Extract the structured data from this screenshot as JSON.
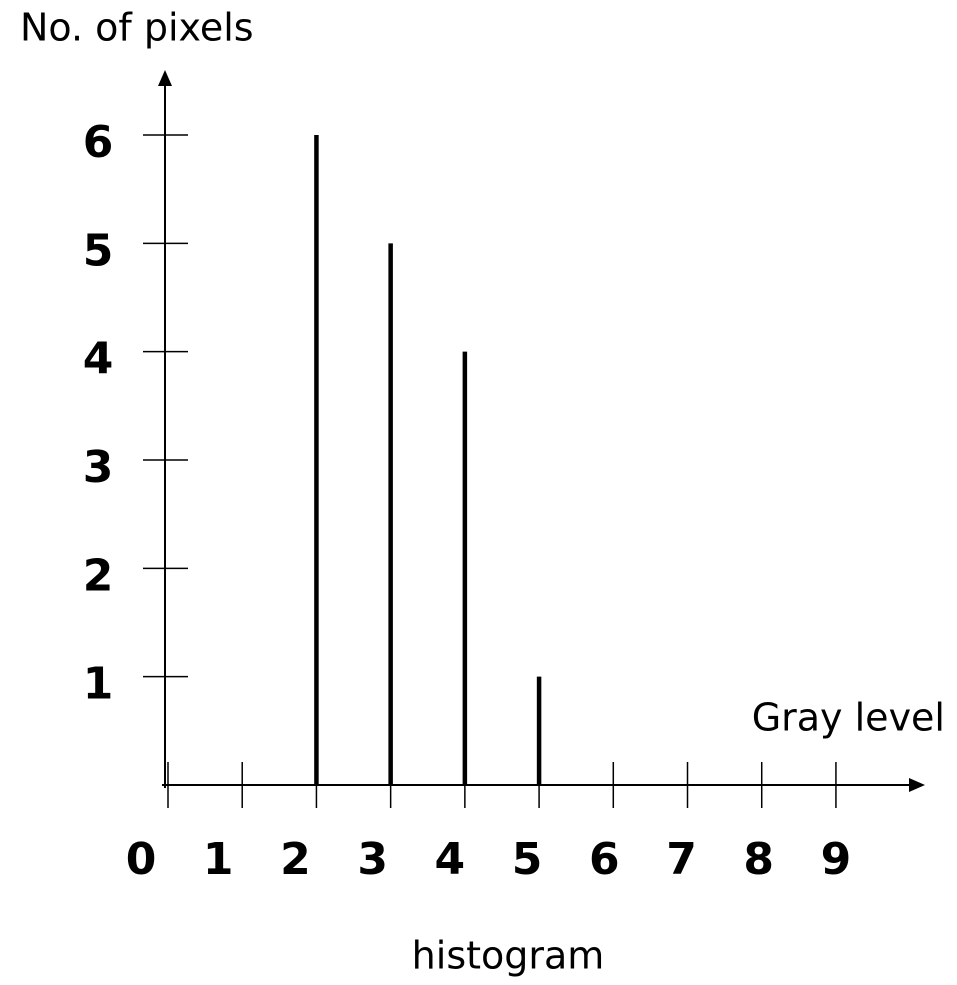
{
  "chart_data": {
    "type": "stem",
    "title": "histogram",
    "ylabel": "No. of pixels",
    "xlabel": "Gray level",
    "x": [
      2,
      3,
      4,
      5
    ],
    "values": [
      6,
      5,
      4,
      1
    ],
    "color": "#000000",
    "xlim": [
      0,
      10.2
    ],
    "xticks": [
      0,
      1,
      2,
      3,
      4,
      5,
      6,
      7,
      8,
      9
    ],
    "ylim": [
      0,
      6.6
    ],
    "yticks": [
      1,
      2,
      3,
      4,
      5,
      6
    ]
  }
}
